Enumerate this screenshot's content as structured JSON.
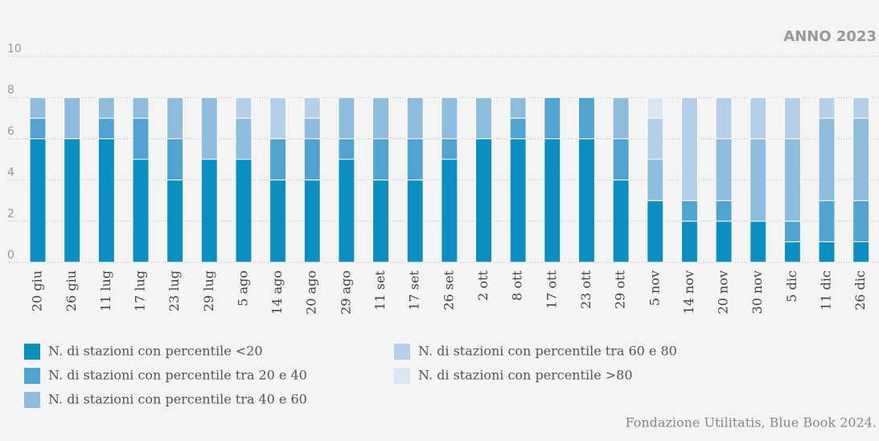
{
  "chart_data": {
    "type": "bar",
    "stacked": true,
    "label": "ANNO 2023",
    "source": "Fondazione Utilitatis, Blue Book 2024.",
    "categories": [
      "20 giu",
      "26 giu",
      "11 lug",
      "17 lug",
      "23 lug",
      "29 lug",
      "5 ago",
      "14 ago",
      "20 ago",
      "29 ago",
      "11 set",
      "17 set",
      "26 set",
      "2 ott",
      "8 ott",
      "17 ott",
      "23 ott",
      "29 ott",
      "5 nov",
      "14 nov",
      "20 nov",
      "30 nov",
      "5 dic",
      "11 dic",
      "26 dic"
    ],
    "series": [
      {
        "name": "N. di stazioni con percentile <20",
        "color": "#0a8fc0",
        "values": [
          6,
          6,
          6,
          5,
          4,
          5,
          5,
          4,
          4,
          5,
          4,
          4,
          5,
          6,
          6,
          6,
          6,
          4,
          3,
          2,
          2,
          2,
          1,
          1,
          1
        ]
      },
      {
        "name": "N. di stazioni con percentile tra 20 e 40",
        "color": "#52a4d0",
        "values": [
          1,
          0,
          1,
          2,
          2,
          0,
          0,
          2,
          2,
          1,
          2,
          2,
          1,
          0,
          1,
          2,
          2,
          2,
          0,
          1,
          1,
          0,
          1,
          2,
          2
        ]
      },
      {
        "name": "N. di stazioni con percentile tra 40 e 60",
        "color": "#8ebcdc",
        "values": [
          1,
          2,
          1,
          1,
          2,
          3,
          2,
          0,
          1,
          2,
          2,
          2,
          2,
          2,
          1,
          0,
          0,
          2,
          2,
          0,
          3,
          4,
          4,
          4,
          4
        ]
      },
      {
        "name": "N. di stazioni con percentile tra 60 e 80",
        "color": "#b7d0e9",
        "values": [
          0,
          0,
          0,
          0,
          0,
          0,
          1,
          2,
          1,
          0,
          0,
          0,
          0,
          0,
          0,
          0,
          0,
          0,
          2,
          5,
          2,
          2,
          2,
          1,
          1
        ]
      },
      {
        "name": "N. di stazioni con percentile >80",
        "color": "#dbe6f5",
        "values": [
          0,
          0,
          0,
          0,
          0,
          0,
          0,
          0,
          0,
          0,
          0,
          0,
          0,
          0,
          0,
          0,
          0,
          0,
          1,
          0,
          0,
          0,
          0,
          0,
          0
        ]
      }
    ],
    "ylim": [
      0,
      10
    ],
    "yticks": [
      0,
      2,
      4,
      6,
      8,
      10
    ],
    "grid": true
  }
}
